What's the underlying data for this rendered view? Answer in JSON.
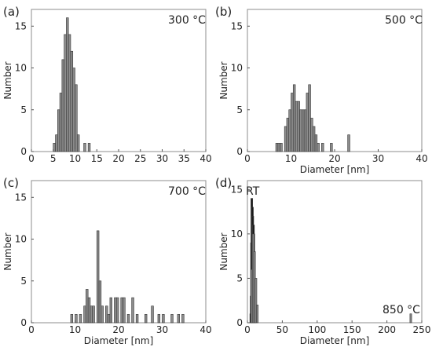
{
  "chart_data": [
    {
      "type": "bar",
      "panel": "(a)",
      "annotation": "300 °C",
      "xlabel": "",
      "ylabel": "Number",
      "xlim": [
        0,
        40
      ],
      "ylim": [
        0,
        17
      ],
      "xticks": [
        0,
        5,
        10,
        15,
        20,
        25,
        30,
        35,
        40
      ],
      "yticks": [
        0,
        5,
        10,
        15
      ],
      "bin_width": 0.5,
      "x": [
        5.0,
        5.5,
        6.0,
        6.5,
        7.0,
        7.5,
        8.0,
        8.5,
        9.0,
        9.5,
        10.0,
        10.5,
        12.0,
        13.0
      ],
      "values": [
        1,
        2,
        5,
        7,
        11,
        14,
        16,
        14,
        12,
        10,
        8,
        2,
        1,
        1
      ]
    },
    {
      "type": "bar",
      "panel": "(b)",
      "annotation": "500 °C",
      "xlabel": "Diameter [nm]",
      "ylabel": "Number",
      "xlim": [
        0,
        40
      ],
      "ylim": [
        0,
        17
      ],
      "xticks": [
        0,
        10,
        20,
        30,
        40
      ],
      "yticks": [
        0,
        5,
        10,
        15
      ],
      "bin_width": 0.5,
      "x": [
        6.5,
        7.0,
        7.5,
        8.5,
        9.0,
        9.5,
        10.0,
        10.5,
        11.0,
        11.5,
        12.0,
        12.5,
        13.0,
        13.5,
        14.0,
        14.5,
        15.0,
        15.5,
        16.0,
        17.0,
        19.0,
        23.0
      ],
      "values": [
        1,
        1,
        1,
        3,
        4,
        5,
        7,
        8,
        6,
        6,
        5,
        5,
        5,
        7,
        8,
        4,
        3,
        2,
        1,
        1,
        1,
        2
      ]
    },
    {
      "type": "bar",
      "panel": "(c)",
      "annotation": "700 °C",
      "xlabel": "Diameter [nm]",
      "ylabel": "Number",
      "xlim": [
        0,
        40
      ],
      "ylim": [
        0,
        17
      ],
      "xticks": [
        0,
        10,
        20,
        30,
        40
      ],
      "yticks": [
        0,
        5,
        10,
        15
      ],
      "bin_width": 0.5,
      "x": [
        9.0,
        10.0,
        11.0,
        12.0,
        12.5,
        13.0,
        13.5,
        14.0,
        15.0,
        15.5,
        16.0,
        17.0,
        17.5,
        18.0,
        19.0,
        19.5,
        20.5,
        21.0,
        22.0,
        23.0,
        24.0,
        26.0,
        27.5,
        29.0,
        30.0,
        32.0,
        33.5,
        34.5
      ],
      "values": [
        1,
        1,
        1,
        2,
        4,
        3,
        2,
        2,
        11,
        5,
        2,
        2,
        1,
        3,
        3,
        3,
        3,
        3,
        1,
        3,
        1,
        1,
        2,
        1,
        1,
        1,
        1,
        1
      ]
    },
    {
      "type": "bar",
      "panel": "(d)",
      "annotations": [
        "RT",
        "850 °C"
      ],
      "xlabel": "Diameter [nm]",
      "ylabel": "Number",
      "xlim": [
        0,
        250
      ],
      "ylim": [
        0,
        16
      ],
      "xticks": [
        0,
        50,
        100,
        150,
        200,
        250
      ],
      "yticks": [
        0,
        5,
        10,
        15
      ],
      "series": [
        {
          "name": "RT",
          "color": "#1a1a1a",
          "bin_width": 0.5,
          "x": [
            3.5,
            4.0,
            4.5,
            5.0,
            5.5,
            6.0,
            6.5,
            7.0,
            7.5,
            8.0,
            8.5,
            9.0,
            9.5,
            10.0
          ],
          "values": [
            1,
            3,
            9,
            14,
            13,
            13,
            12,
            11,
            11,
            10,
            7,
            5,
            3,
            1
          ]
        },
        {
          "name": "850 °C",
          "color": "#8a8a8a",
          "bin_width": 1.5,
          "x": [
            5,
            7,
            9,
            11,
            13,
            233
          ],
          "values": [
            6,
            10,
            8,
            5,
            2,
            1
          ]
        }
      ]
    }
  ]
}
